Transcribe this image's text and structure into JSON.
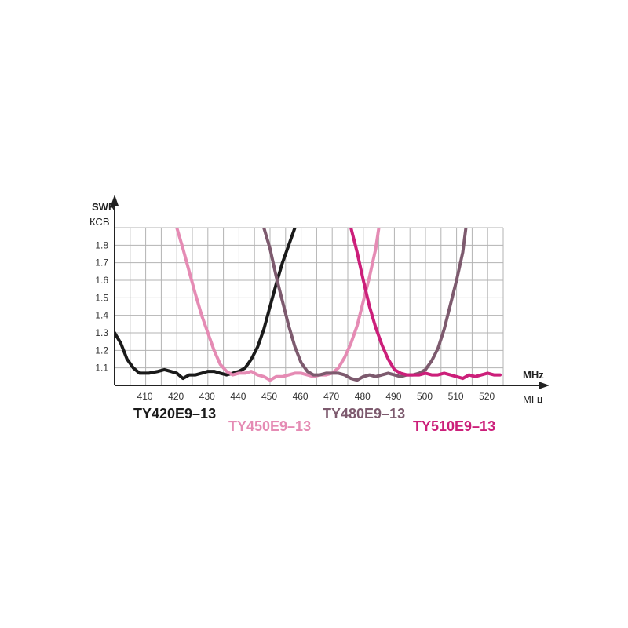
{
  "chart_data": {
    "type": "line",
    "y_title_top": "SWR",
    "y_title_bottom": "КСВ",
    "x_title_top": "MHz",
    "x_title_bottom": "МГц",
    "xlim": [
      400,
      525
    ],
    "ylim": [
      1.0,
      1.9
    ],
    "x_ticks": [
      410,
      420,
      430,
      440,
      450,
      460,
      470,
      480,
      490,
      500,
      510,
      520
    ],
    "y_ticks": [
      1.1,
      1.2,
      1.3,
      1.4,
      1.5,
      1.6,
      1.7,
      1.8
    ],
    "grid": true,
    "series": [
      {
        "name": "TY420E9–13",
        "color": "#1a1a1a",
        "points": [
          [
            400,
            1.3
          ],
          [
            402,
            1.24
          ],
          [
            404,
            1.15
          ],
          [
            406,
            1.1
          ],
          [
            408,
            1.07
          ],
          [
            411,
            1.07
          ],
          [
            414,
            1.08
          ],
          [
            416,
            1.09
          ],
          [
            418,
            1.08
          ],
          [
            420,
            1.07
          ],
          [
            422,
            1.04
          ],
          [
            424,
            1.06
          ],
          [
            426,
            1.06
          ],
          [
            428,
            1.07
          ],
          [
            430,
            1.08
          ],
          [
            432,
            1.08
          ],
          [
            434,
            1.07
          ],
          [
            436,
            1.06
          ],
          [
            438,
            1.07
          ],
          [
            440,
            1.08
          ],
          [
            442,
            1.1
          ],
          [
            444,
            1.15
          ],
          [
            446,
            1.22
          ],
          [
            448,
            1.32
          ],
          [
            450,
            1.45
          ],
          [
            452,
            1.58
          ],
          [
            454,
            1.7
          ],
          [
            456,
            1.8
          ],
          [
            458,
            1.9
          ]
        ]
      },
      {
        "name": "TY450E9–13",
        "color": "#e58bb4",
        "points": [
          [
            420,
            1.9
          ],
          [
            422,
            1.78
          ],
          [
            424,
            1.65
          ],
          [
            426,
            1.52
          ],
          [
            428,
            1.4
          ],
          [
            430,
            1.3
          ],
          [
            432,
            1.2
          ],
          [
            434,
            1.12
          ],
          [
            436,
            1.08
          ],
          [
            438,
            1.06
          ],
          [
            440,
            1.07
          ],
          [
            442,
            1.07
          ],
          [
            444,
            1.08
          ],
          [
            446,
            1.06
          ],
          [
            448,
            1.05
          ],
          [
            450,
            1.03
          ],
          [
            452,
            1.05
          ],
          [
            454,
            1.05
          ],
          [
            456,
            1.06
          ],
          [
            458,
            1.07
          ],
          [
            460,
            1.07
          ],
          [
            462,
            1.06
          ],
          [
            464,
            1.05
          ],
          [
            466,
            1.06
          ],
          [
            468,
            1.06
          ],
          [
            470,
            1.07
          ],
          [
            472,
            1.1
          ],
          [
            474,
            1.16
          ],
          [
            476,
            1.24
          ],
          [
            478,
            1.34
          ],
          [
            480,
            1.48
          ],
          [
            482,
            1.62
          ],
          [
            484,
            1.78
          ],
          [
            485,
            1.9
          ]
        ]
      },
      {
        "name": "TY480E9–13",
        "color": "#7d5a6e",
        "points": [
          [
            448,
            1.9
          ],
          [
            450,
            1.78
          ],
          [
            452,
            1.62
          ],
          [
            454,
            1.48
          ],
          [
            456,
            1.34
          ],
          [
            458,
            1.22
          ],
          [
            460,
            1.13
          ],
          [
            462,
            1.08
          ],
          [
            464,
            1.06
          ],
          [
            466,
            1.06
          ],
          [
            468,
            1.07
          ],
          [
            470,
            1.07
          ],
          [
            472,
            1.07
          ],
          [
            474,
            1.06
          ],
          [
            476,
            1.04
          ],
          [
            478,
            1.03
          ],
          [
            480,
            1.05
          ],
          [
            482,
            1.06
          ],
          [
            484,
            1.05
          ],
          [
            486,
            1.06
          ],
          [
            488,
            1.07
          ],
          [
            490,
            1.06
          ],
          [
            492,
            1.05
          ],
          [
            494,
            1.06
          ],
          [
            496,
            1.06
          ],
          [
            498,
            1.07
          ],
          [
            500,
            1.09
          ],
          [
            502,
            1.14
          ],
          [
            504,
            1.21
          ],
          [
            506,
            1.32
          ],
          [
            508,
            1.46
          ],
          [
            510,
            1.6
          ],
          [
            512,
            1.76
          ],
          [
            513,
            1.9
          ]
        ]
      },
      {
        "name": "TY510E9–13",
        "color": "#cc1f7a",
        "points": [
          [
            476,
            1.9
          ],
          [
            478,
            1.76
          ],
          [
            480,
            1.6
          ],
          [
            482,
            1.45
          ],
          [
            484,
            1.33
          ],
          [
            486,
            1.23
          ],
          [
            488,
            1.15
          ],
          [
            490,
            1.09
          ],
          [
            492,
            1.07
          ],
          [
            494,
            1.06
          ],
          [
            496,
            1.06
          ],
          [
            498,
            1.06
          ],
          [
            500,
            1.07
          ],
          [
            502,
            1.06
          ],
          [
            504,
            1.06
          ],
          [
            506,
            1.07
          ],
          [
            508,
            1.06
          ],
          [
            510,
            1.05
          ],
          [
            512,
            1.04
          ],
          [
            514,
            1.06
          ],
          [
            516,
            1.05
          ],
          [
            518,
            1.06
          ],
          [
            520,
            1.07
          ],
          [
            522,
            1.06
          ],
          [
            524,
            1.06
          ]
        ]
      }
    ]
  }
}
